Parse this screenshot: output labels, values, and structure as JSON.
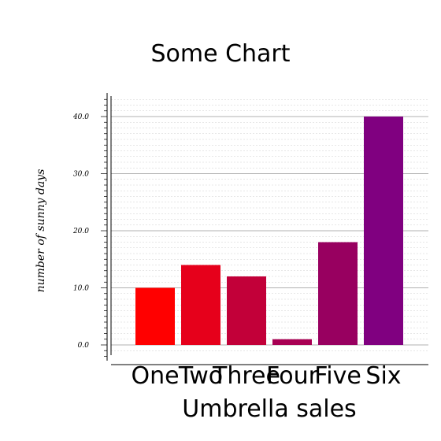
{
  "chart_data": {
    "type": "bar",
    "title": "Some Chart",
    "xlabel": "Umbrella sales",
    "ylabel": "number of sunny days",
    "categories": [
      "One",
      "Two",
      "Three",
      "Four",
      "Five",
      "Six"
    ],
    "values": [
      10,
      14,
      12,
      1,
      18,
      40
    ],
    "colors": [
      "#ff0000",
      "#e6001b",
      "#c20039",
      "#a80053",
      "#980060",
      "#800080"
    ],
    "ylim": [
      0,
      43
    ],
    "yticks": [
      0,
      10,
      20,
      30,
      40
    ],
    "ytick_labels": [
      "0.0",
      "10.0",
      "20.0",
      "30.0",
      "40.0"
    ],
    "grid": true
  }
}
